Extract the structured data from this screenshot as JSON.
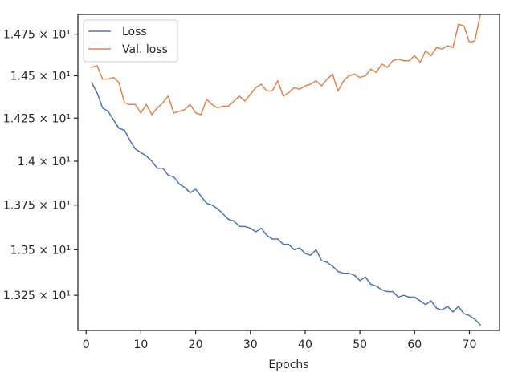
{
  "chart_data": {
    "type": "line",
    "xlabel": "Epochs",
    "ylabel": "",
    "title": "",
    "xlim": [
      -1.5,
      75.5
    ],
    "ylim": [
      13.06,
      14.87
    ],
    "y_scale": "log",
    "grid": false,
    "legend_position": "top-left",
    "x_ticks": [
      0,
      10,
      20,
      30,
      40,
      50,
      60,
      70
    ],
    "x_tick_labels": [
      "0",
      "10",
      "20",
      "30",
      "40",
      "50",
      "60",
      "70"
    ],
    "y_ticks": [
      13.25,
      13.5,
      13.75,
      14.0,
      14.25,
      14.5,
      14.75
    ],
    "y_tick_labels": [
      "1.325 × 10¹",
      "1.35 × 10¹",
      "1.375 × 10¹",
      "1.4 × 10¹",
      "1.425 × 10¹",
      "1.45 × 10¹",
      "1.475 × 10¹"
    ],
    "x": [
      1,
      2,
      3,
      4,
      5,
      6,
      7,
      8,
      9,
      10,
      11,
      12,
      13,
      14,
      15,
      16,
      17,
      18,
      19,
      20,
      21,
      22,
      23,
      24,
      25,
      26,
      27,
      28,
      29,
      30,
      31,
      32,
      33,
      34,
      35,
      36,
      37,
      38,
      39,
      40,
      41,
      42,
      43,
      44,
      45,
      46,
      47,
      48,
      49,
      50,
      51,
      52,
      53,
      54,
      55,
      56,
      57,
      58,
      59,
      60,
      61,
      62,
      63,
      64,
      65,
      66,
      67,
      68,
      69,
      70,
      71,
      72
    ],
    "series": [
      {
        "name": "Loss",
        "color": "#4c72b0",
        "values": [
          14.46,
          14.4,
          14.31,
          14.29,
          14.24,
          14.19,
          14.18,
          14.12,
          14.07,
          14.05,
          14.03,
          14.0,
          13.96,
          13.96,
          13.92,
          13.91,
          13.87,
          13.85,
          13.82,
          13.84,
          13.8,
          13.76,
          13.75,
          13.73,
          13.7,
          13.67,
          13.66,
          13.63,
          13.63,
          13.62,
          13.6,
          13.62,
          13.58,
          13.56,
          13.56,
          13.53,
          13.53,
          13.5,
          13.51,
          13.48,
          13.47,
          13.5,
          13.44,
          13.43,
          13.41,
          13.38,
          13.37,
          13.37,
          13.36,
          13.33,
          13.35,
          13.31,
          13.3,
          13.28,
          13.27,
          13.27,
          13.24,
          13.25,
          13.24,
          13.24,
          13.22,
          13.2,
          13.22,
          13.18,
          13.17,
          13.19,
          13.16,
          13.19,
          13.15,
          13.14,
          13.12,
          13.09
        ]
      },
      {
        "name": "Val. loss",
        "color": "#dd8452",
        "values": [
          14.55,
          14.56,
          14.48,
          14.48,
          14.49,
          14.46,
          14.34,
          14.33,
          14.33,
          14.28,
          14.33,
          14.27,
          14.31,
          14.34,
          14.38,
          14.28,
          14.29,
          14.3,
          14.33,
          14.28,
          14.27,
          14.36,
          14.33,
          14.31,
          14.32,
          14.32,
          14.35,
          14.38,
          14.35,
          14.39,
          14.43,
          14.45,
          14.41,
          14.41,
          14.47,
          14.38,
          14.4,
          14.43,
          14.42,
          14.44,
          14.45,
          14.47,
          14.44,
          14.48,
          14.51,
          14.41,
          14.47,
          14.5,
          14.51,
          14.49,
          14.5,
          14.54,
          14.52,
          14.57,
          14.55,
          14.59,
          14.6,
          14.59,
          14.59,
          14.62,
          14.58,
          14.65,
          14.62,
          14.67,
          14.66,
          14.68,
          14.67,
          14.81,
          14.8,
          14.7,
          14.71,
          14.87
        ]
      }
    ]
  }
}
